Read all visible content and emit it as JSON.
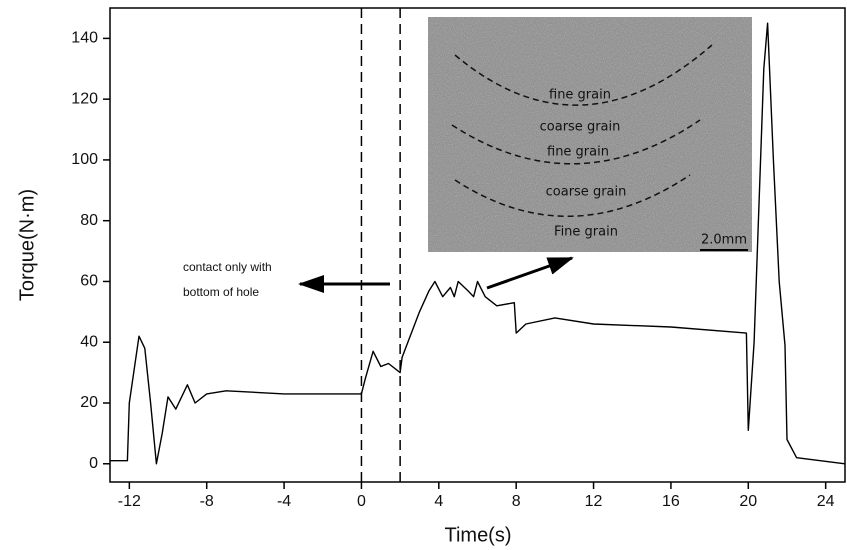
{
  "chart_data": {
    "type": "line",
    "x_label": "Time(s)",
    "y_label": "Torque(N·m)",
    "x": [
      -13,
      -12.1,
      -12,
      -11.5,
      -11.2,
      -10.9,
      -10.6,
      -10.3,
      -10,
      -9.6,
      -9,
      -8.6,
      -8,
      -7,
      -4,
      -2,
      0,
      0.2,
      0.6,
      1,
      1.4,
      2,
      2.1,
      3,
      3.5,
      3.8,
      4.2,
      4.6,
      4.8,
      5,
      5.5,
      5.8,
      6,
      6.4,
      7,
      7.9,
      8,
      8.5,
      10,
      12,
      16,
      19.9,
      20,
      20.3,
      20.8,
      21,
      21.3,
      21.6,
      21.9,
      22,
      22.5,
      25
    ],
    "values": [
      1,
      1,
      20,
      42,
      38,
      20,
      0,
      10,
      22,
      18,
      26,
      20,
      23,
      24,
      23,
      23,
      23,
      28,
      37,
      32,
      33,
      30,
      35,
      50,
      57,
      60,
      55,
      58,
      55,
      60,
      57,
      55,
      60,
      55,
      52,
      53,
      43,
      46,
      48,
      46,
      45,
      43,
      11,
      40,
      130,
      145,
      100,
      60,
      39,
      8,
      2,
      0
    ],
    "color": "#000000",
    "xlim": [
      -13,
      25
    ],
    "xticks": [
      -12,
      -8,
      -4,
      0,
      4,
      8,
      12,
      16,
      20,
      24
    ],
    "ylim": [
      -6,
      150
    ],
    "yticks": [
      0,
      20,
      40,
      60,
      80,
      100,
      120,
      140
    ],
    "markers": [
      0,
      2
    ],
    "annotation": [
      "contact only with",
      "bottom of hole"
    ],
    "inset_labels": [
      "fine grain",
      "coarse grain",
      "fine grain",
      "coarse grain",
      "Fine grain",
      "2.0mm"
    ]
  }
}
